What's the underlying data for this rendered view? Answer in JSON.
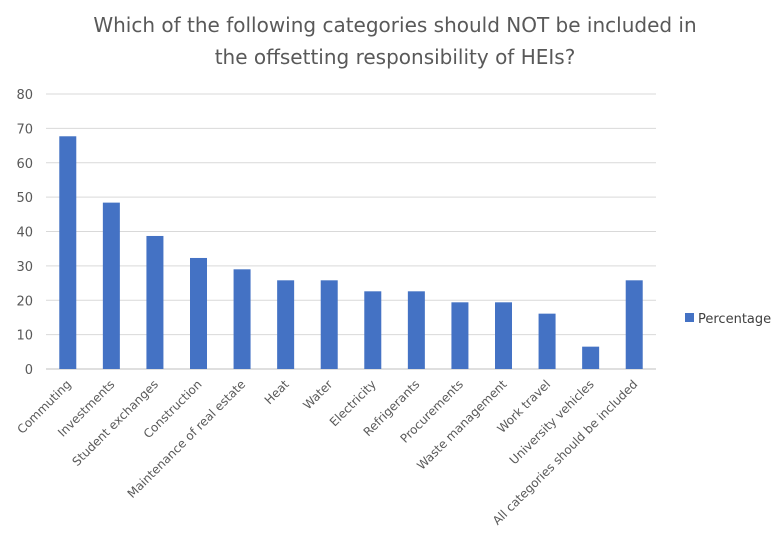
{
  "chart_data": {
    "type": "bar",
    "title_lines": [
      "Which of the following categories should NOT be included in",
      "the offsetting responsibility of HEIs?"
    ],
    "categories": [
      "Commuting",
      "Investments",
      "Student exchanges",
      "Construction",
      "Maintenance of real estate",
      "Heat",
      "Water",
      "Electricity",
      "Refrigerants",
      "Procurements",
      "Waste management",
      "Work travel",
      "University vehicles",
      "All categories should be included"
    ],
    "series": [
      {
        "name": "Percentage",
        "values": [
          67.7,
          48.4,
          38.7,
          32.3,
          29.0,
          25.8,
          25.8,
          22.6,
          22.6,
          19.4,
          19.4,
          16.1,
          6.5,
          25.8
        ]
      }
    ],
    "ylim": [
      0,
      80
    ],
    "yticks": [
      "0",
      "10",
      "20",
      "30",
      "40",
      "50",
      "60",
      "70",
      "80"
    ],
    "grid": true,
    "legend_position": "right",
    "bar_color": "#4472c4"
  }
}
